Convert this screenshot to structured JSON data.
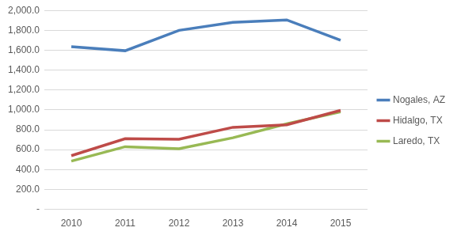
{
  "chart_data": {
    "type": "line",
    "categories": [
      "2010",
      "2011",
      "2012",
      "2013",
      "2014",
      "2015"
    ],
    "series": [
      {
        "name": "Nogales, AZ",
        "color": "#4a7ebb",
        "values": [
          1635,
          1595,
          1800,
          1880,
          1905,
          1700
        ]
      },
      {
        "name": "Hidalgo, TX",
        "color": "#be4b48",
        "values": [
          540,
          710,
          705,
          825,
          850,
          995
        ]
      },
      {
        "name": "Laredo, TX",
        "color": "#98b954",
        "values": [
          485,
          630,
          610,
          720,
          860,
          980
        ]
      }
    ],
    "ylim": [
      0,
      2000
    ],
    "yticks": [
      {
        "value": 0,
        "label": "-"
      },
      {
        "value": 200,
        "label": "200.0"
      },
      {
        "value": 400,
        "label": "400.0"
      },
      {
        "value": 600,
        "label": "600.0"
      },
      {
        "value": 800,
        "label": "800.0"
      },
      {
        "value": 1000,
        "label": "1,000.0"
      },
      {
        "value": 1200,
        "label": "1,200.0"
      },
      {
        "value": 1400,
        "label": "1,400.0"
      },
      {
        "value": 1600,
        "label": "1,600.0"
      },
      {
        "value": 1800,
        "label": "1,800.0"
      },
      {
        "value": 2000,
        "label": "2,000.0"
      }
    ],
    "grid": true,
    "legend": "right",
    "marker": "none"
  }
}
